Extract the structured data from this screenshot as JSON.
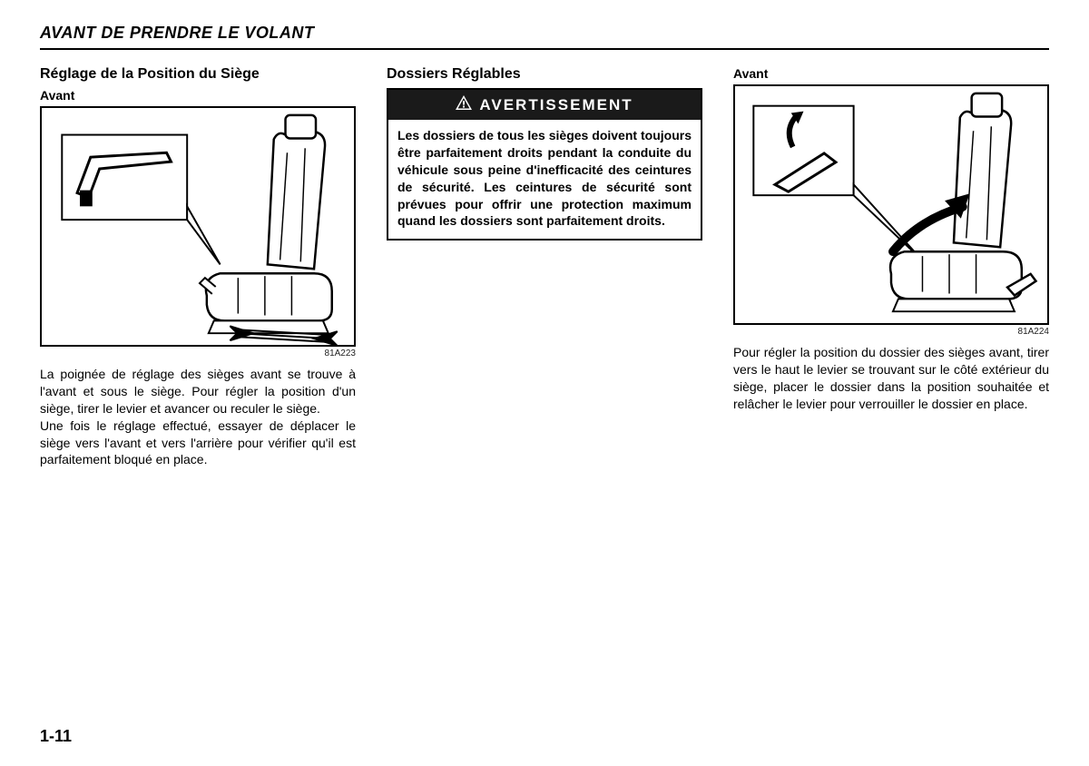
{
  "page": {
    "title": "AVANT DE PRENDRE LE VOLANT",
    "number": "1-11"
  },
  "col1": {
    "heading": "Réglage de la Position du Siège",
    "sub": "Avant",
    "figure_code": "81A223",
    "text": "La poignée de réglage des sièges avant se trouve à l'avant et sous le siège. Pour régler la position d'un siège, tirer le levier et avancer ou reculer le siège.\nUne fois le réglage effectué, essayer de déplacer le siège vers l'avant et vers l'arrière pour vérifier qu'il est parfaitement bloqué en place."
  },
  "col2": {
    "heading": "Dossiers Réglables",
    "warning_label": "AVERTISSEMENT",
    "warning_text": "Les dossiers de tous les sièges doivent toujours être parfaitement droits pendant la conduite du véhicule sous peine d'inefficacité des ceintures de sécurité. Les ceintures de sécurité sont prévues pour offrir une protection maximum quand les dossiers sont parfaitement droits."
  },
  "col3": {
    "sub": "Avant",
    "figure_code": "81A224",
    "text": "Pour régler la position du dossier des sièges avant, tirer vers le haut le levier se trouvant sur le côté extérieur du siège, placer le dossier dans la position souhaitée et relâcher le levier pour verrouiller le dossier en place."
  },
  "style": {
    "text_color": "#000000",
    "bg_color": "#ffffff",
    "warning_bg": "#1a1a1a",
    "warning_fg": "#ffffff",
    "border_color": "#000000"
  }
}
